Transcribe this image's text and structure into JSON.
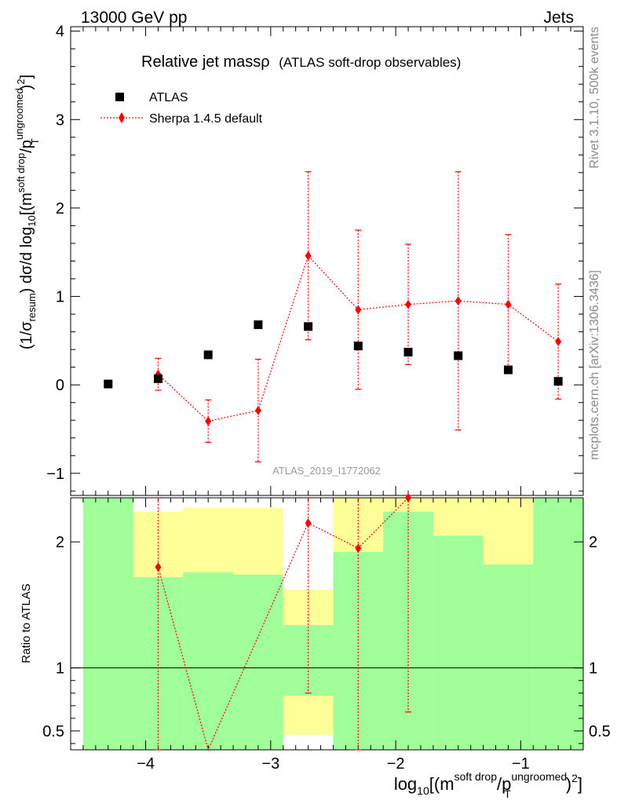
{
  "header": {
    "left": "13000 GeV pp",
    "right": "Jets"
  },
  "side": {
    "rivet": "Rivet 3.1.10,  500k events",
    "mcplots": "mcplots.cern.ch [arXiv:1306.3436]"
  },
  "chart_data": {
    "type": "scatter",
    "title": "Relative jet massρ",
    "subtitle": "(ATLAS soft-drop observables)",
    "analysis": "ATLAS_2019_I1772062",
    "ylabel_parts": {
      "prefix": "(1/σ",
      "sub": "resum",
      "mid": ") dσ/d log",
      "sub2": "10",
      "after": "[(m",
      "sup": "soft drop",
      "slash": "/p",
      "sup2": "ungroomed",
      "sub3": "T",
      "end": ")",
      "sup3": "2",
      "close": "]"
    },
    "xlabel_parts": {
      "prefix": "log",
      "sub": "10",
      "after": "[(m",
      "sup": "soft drop",
      "slash": "/p",
      "sup2": "ungroomed",
      "sub3": "T",
      "end": ")",
      "sup3": "2",
      "close": "]"
    },
    "ratio_ylabel": "Ratio to ATLAS",
    "xlim": [
      -4.6,
      -0.5
    ],
    "ylim": [
      -1.25,
      4.05
    ],
    "ratio_ylim": [
      0.35,
      2.35
    ],
    "x_ticks": [
      -4,
      -3,
      -2,
      -1
    ],
    "x_tick_labels": [
      "−4",
      "−3",
      "−2",
      "−1"
    ],
    "y_ticks": [
      -1,
      0,
      1,
      2,
      3,
      4
    ],
    "y_tick_labels": [
      "−1",
      "0",
      "1",
      "2",
      "3",
      "4"
    ],
    "ratio_ticks": [
      0.5,
      1,
      2
    ],
    "ratio_tick_labels": [
      "0.5",
      "1",
      "2"
    ],
    "legend": [
      {
        "name": "ATLAS",
        "marker": "square",
        "color": "#000000"
      },
      {
        "name": "Sherpa 1.4.5 default",
        "marker": "diamond",
        "color": "#ff0000"
      }
    ],
    "bins": [
      {
        "lo": -4.5,
        "hi": -4.1
      },
      {
        "lo": -4.1,
        "hi": -3.7
      },
      {
        "lo": -3.7,
        "hi": -3.3
      },
      {
        "lo": -3.3,
        "hi": -2.9
      },
      {
        "lo": -2.9,
        "hi": -2.5
      },
      {
        "lo": -2.5,
        "hi": -2.1
      },
      {
        "lo": -2.1,
        "hi": -1.7
      },
      {
        "lo": -1.7,
        "hi": -1.3
      },
      {
        "lo": -1.3,
        "hi": -0.9
      },
      {
        "lo": -0.9,
        "hi": -0.5
      }
    ],
    "series": [
      {
        "name": "ATLAS",
        "x": [
          -4.3,
          -3.9,
          -3.5,
          -3.1,
          -2.7,
          -2.3,
          -1.9,
          -1.5,
          -1.1,
          -0.7
        ],
        "y": [
          0.01,
          0.07,
          0.34,
          0.68,
          0.66,
          0.44,
          0.37,
          0.33,
          0.17,
          0.04
        ]
      },
      {
        "name": "Sherpa 1.4.5 default",
        "x": [
          -3.9,
          -3.5,
          -3.1,
          -2.7,
          -2.3,
          -1.9,
          -1.5,
          -1.1,
          -0.7
        ],
        "y": [
          0.12,
          -0.41,
          -0.29,
          1.46,
          0.85,
          0.91,
          0.95,
          0.91,
          0.49
        ],
        "yerr_lo": [
          0.18,
          0.24,
          0.58,
          0.95,
          0.9,
          0.68,
          1.46,
          0.74,
          0.65
        ],
        "yerr_hi": [
          0.18,
          0.24,
          0.58,
          0.95,
          0.9,
          0.68,
          1.46,
          0.79,
          0.65
        ]
      }
    ],
    "ratio": {
      "x": [
        -3.9,
        -3.5,
        -2.7,
        -2.3,
        -1.9
      ],
      "y": [
        1.8,
        0.2,
        2.15,
        1.95,
        2.35
      ],
      "err_lo": [
        1.6,
        0.0,
        1.35,
        1.6,
        1.7
      ],
      "err_hi": [
        0.7,
        0.0,
        0.6,
        0.8,
        0.1
      ]
    },
    "ratio_bands": {
      "green": [
        [
          0.35,
          2.35
        ],
        [
          0.35,
          1.72
        ],
        [
          0.35,
          1.76
        ],
        [
          0.35,
          1.74
        ],
        [
          0.35,
          1.34
        ],
        [
          0.35,
          1.92
        ],
        [
          0.35,
          2.24
        ],
        [
          0.35,
          2.05
        ],
        [
          0.35,
          1.82
        ],
        [
          0.35,
          2.35
        ]
      ],
      "yellow": [
        [
          0.35,
          2.35
        ],
        [
          0.35,
          2.24
        ],
        [
          0.35,
          2.27
        ],
        [
          0.35,
          2.27
        ],
        [
          0.35,
          1.62
        ],
        [
          0.35,
          2.35
        ],
        [
          0.35,
          2.35
        ],
        [
          0.35,
          2.35
        ],
        [
          0.35,
          2.35
        ],
        [
          0.35,
          2.35
        ]
      ],
      "gap": [
        {
          "lo": 0.47,
          "hi": 0.78
        },
        {
          "lo": 1.62,
          "hi": 2.35
        }
      ],
      "colors": {
        "green": "#a0ff98",
        "yellow": "#ffff98"
      }
    }
  }
}
